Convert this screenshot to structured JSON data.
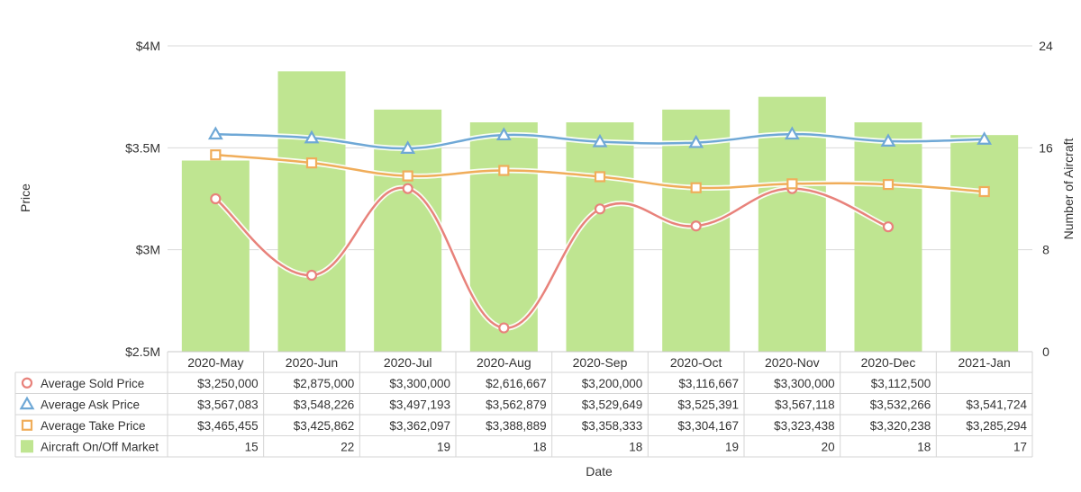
{
  "chart_data": {
    "type": "bar+line",
    "title": "",
    "xlabel": "Date",
    "ylabel_left": "Price",
    "ylabel_right": "Number of Aircraft",
    "categories": [
      "2020-May",
      "2020-Jun",
      "2020-Jul",
      "2020-Aug",
      "2020-Sep",
      "2020-Oct",
      "2020-Nov",
      "2020-Dec",
      "2021-Jan"
    ],
    "ylim_left": [
      2500000,
      4000000
    ],
    "ylim_right": [
      0,
      24
    ],
    "left_ticks": [
      {
        "value": 2500000,
        "label": "$2.5M"
      },
      {
        "value": 3000000,
        "label": "$3M"
      },
      {
        "value": 3500000,
        "label": "$3.5M"
      },
      {
        "value": 4000000,
        "label": "$4M"
      }
    ],
    "right_ticks": [
      {
        "value": 0,
        "label": "0"
      },
      {
        "value": 8,
        "label": "8"
      },
      {
        "value": 16,
        "label": "16"
      },
      {
        "value": 24,
        "label": "24"
      }
    ],
    "grid": true,
    "series": [
      {
        "name": "Average Sold Price",
        "type": "line",
        "axis": "left",
        "marker": "circle",
        "color": "#e8827b",
        "values": [
          3250000,
          2875000,
          3300000,
          2616667,
          3200000,
          3116667,
          3300000,
          3112500,
          null
        ],
        "labels": [
          "$3,250,000",
          "$2,875,000",
          "$3,300,000",
          "$2,616,667",
          "$3,200,000",
          "$3,116,667",
          "$3,300,000",
          "$3,112,500",
          ""
        ]
      },
      {
        "name": "Average Ask Price",
        "type": "line",
        "axis": "left",
        "marker": "triangle",
        "color": "#6fa8d6",
        "values": [
          3567083,
          3548226,
          3497193,
          3562879,
          3529649,
          3525391,
          3567118,
          3532266,
          3541724
        ],
        "labels": [
          "$3,567,083",
          "$3,548,226",
          "$3,497,193",
          "$3,562,879",
          "$3,529,649",
          "$3,525,391",
          "$3,567,118",
          "$3,532,266",
          "$3,541,724"
        ]
      },
      {
        "name": "Average Take Price",
        "type": "line",
        "axis": "left",
        "marker": "square",
        "color": "#f0ad5a",
        "values": [
          3465455,
          3425862,
          3362097,
          3388889,
          3358333,
          3304167,
          3323438,
          3320238,
          3285294
        ],
        "labels": [
          "$3,465,455",
          "$3,425,862",
          "$3,362,097",
          "$3,388,889",
          "$3,358,333",
          "$3,304,167",
          "$3,323,438",
          "$3,320,238",
          "$3,285,294"
        ]
      },
      {
        "name": "Aircraft On/Off Market",
        "type": "bar",
        "axis": "right",
        "marker": "bar",
        "color": "#bfe591",
        "values": [
          15,
          22,
          19,
          18,
          18,
          19,
          20,
          18,
          17
        ],
        "labels": [
          "15",
          "22",
          "19",
          "18",
          "18",
          "19",
          "20",
          "18",
          "17"
        ]
      }
    ]
  }
}
